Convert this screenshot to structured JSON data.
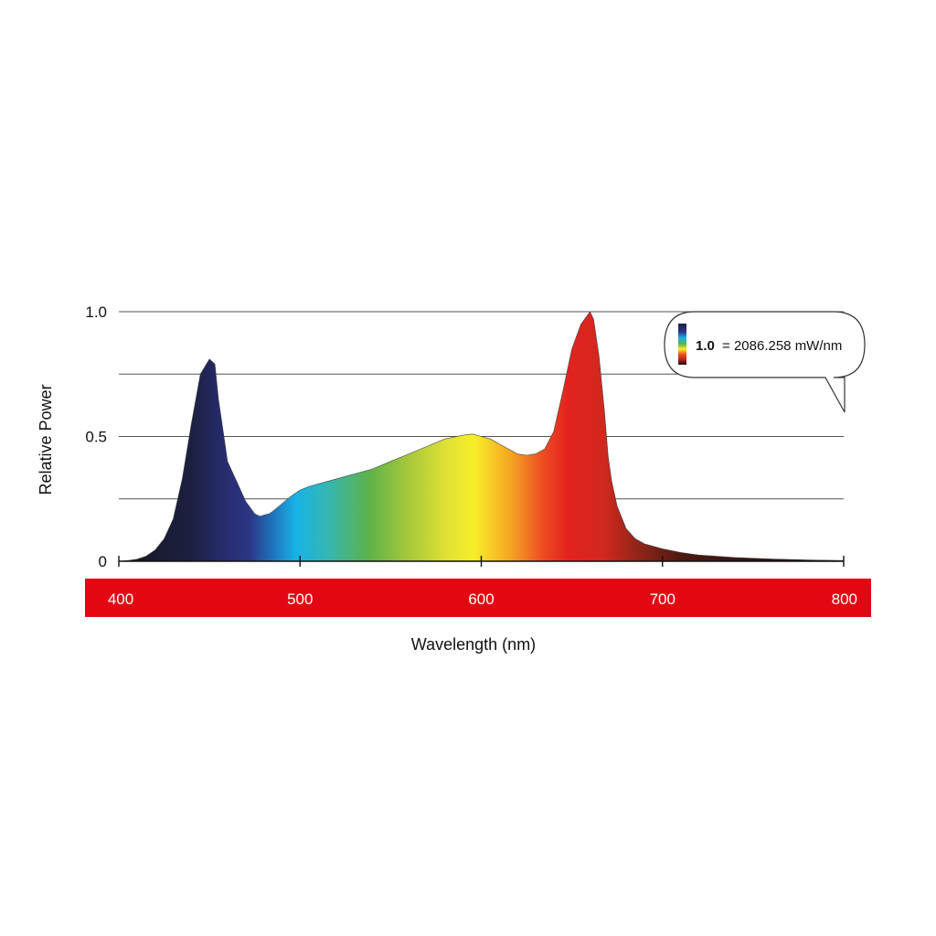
{
  "chart_data": {
    "type": "area",
    "title": "",
    "xlabel": "Wavelength (nm)",
    "ylabel": "Relative Power",
    "xlim": [
      400,
      800
    ],
    "ylim": [
      0,
      1.0
    ],
    "x_ticks": [
      "400",
      "500",
      "600",
      "700",
      "800"
    ],
    "y_ticks": [
      "0",
      "0.5",
      "1.0"
    ],
    "gridlines_y": [
      0.25,
      0.5,
      0.75,
      1.0
    ],
    "grid": true,
    "x_band_color": "#e30613",
    "callout": {
      "value": "1.0",
      "text": "= 2086.258 mW/nm",
      "placement": "top-right"
    },
    "series": [
      {
        "fill": "visible-spectrum-gradient",
        "x": [
          400,
          405,
          410,
          415,
          420,
          425,
          430,
          435,
          440,
          445,
          450,
          453,
          455,
          458,
          460,
          465,
          470,
          475,
          478,
          480,
          483,
          485,
          490,
          495,
          500,
          505,
          510,
          520,
          530,
          540,
          550,
          560,
          570,
          580,
          590,
          595,
          600,
          605,
          610,
          615,
          620,
          625,
          630,
          635,
          640,
          645,
          650,
          655,
          660,
          662,
          665,
          668,
          670,
          672,
          675,
          680,
          685,
          690,
          700,
          710,
          720,
          740,
          760,
          780,
          800
        ],
        "y": [
          0.0,
          0.003,
          0.008,
          0.02,
          0.045,
          0.09,
          0.17,
          0.33,
          0.55,
          0.75,
          0.81,
          0.79,
          0.65,
          0.5,
          0.4,
          0.32,
          0.24,
          0.19,
          0.18,
          0.185,
          0.19,
          0.2,
          0.23,
          0.26,
          0.285,
          0.3,
          0.31,
          0.33,
          0.35,
          0.37,
          0.4,
          0.43,
          0.46,
          0.49,
          0.505,
          0.51,
          0.5,
          0.49,
          0.47,
          0.45,
          0.43,
          0.425,
          0.43,
          0.45,
          0.52,
          0.68,
          0.85,
          0.95,
          1.0,
          0.97,
          0.82,
          0.6,
          0.42,
          0.32,
          0.22,
          0.13,
          0.09,
          0.07,
          0.05,
          0.035,
          0.025,
          0.015,
          0.009,
          0.005,
          0.003
        ]
      }
    ]
  }
}
